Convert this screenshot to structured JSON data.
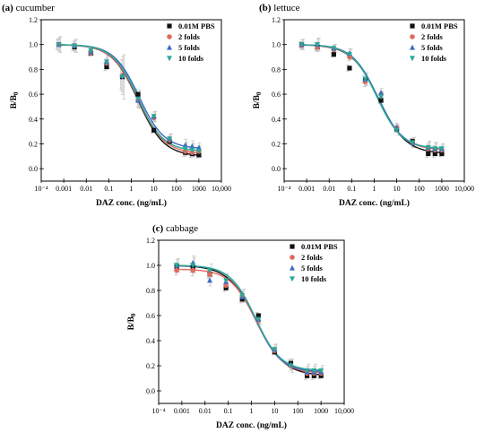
{
  "chart_data": [
    {
      "type": "scatter",
      "panel_label": "(a)",
      "title": "cucumber",
      "xlabel": "DAZ conc. (ng/mL)",
      "ylabel_main": "B/B",
      "ylabel_sub": "0",
      "x_scale": "log",
      "xlim": [
        0.0001,
        10000
      ],
      "ylim": [
        -0.1,
        1.2
      ],
      "x_ticks": [
        "10⁻⁴",
        "0.001",
        "0.01",
        "0.1",
        "1",
        "10",
        "100",
        "1000",
        "10,000"
      ],
      "y_ticks": [
        "0.0",
        "0.2",
        "0.4",
        "0.6",
        "0.8",
        "1.0",
        "1.2"
      ],
      "x_conc": [
        0.0006,
        0.003,
        0.016,
        0.08,
        0.4,
        2,
        10,
        50,
        250,
        500,
        1000
      ],
      "series": [
        {
          "name": "0.01M PBS",
          "color": "#111111",
          "marker": "square",
          "values": [
            1.0,
            0.98,
            0.93,
            0.82,
            0.74,
            0.6,
            0.31,
            0.22,
            0.13,
            0.12,
            0.11
          ],
          "fit": {
            "top": 1.0,
            "bottom": 0.1,
            "ic50": 2.0,
            "slope": 0.75
          }
        },
        {
          "name": "2 folds",
          "color": "#e06a5e",
          "marker": "circle",
          "values": [
            1.0,
            0.99,
            0.93,
            0.85,
            0.75,
            0.55,
            0.41,
            0.23,
            0.14,
            0.13,
            0.14
          ],
          "fit": {
            "top": 1.0,
            "bottom": 0.12,
            "ic50": 2.0,
            "slope": 0.75
          }
        },
        {
          "name": "5 folds",
          "color": "#3a6ac8",
          "marker": "triangle-up",
          "values": [
            1.0,
            0.99,
            0.94,
            0.86,
            0.75,
            0.55,
            0.42,
            0.24,
            0.19,
            0.18,
            0.17
          ],
          "fit": {
            "top": 1.0,
            "bottom": 0.16,
            "ic50": 2.2,
            "slope": 0.78
          }
        },
        {
          "name": "10 folds",
          "color": "#2aa896",
          "marker": "triangle-down",
          "values": [
            1.0,
            0.99,
            0.95,
            0.86,
            0.74,
            0.56,
            0.42,
            0.24,
            0.16,
            0.15,
            0.14
          ],
          "fit": {
            "top": 1.0,
            "bottom": 0.14,
            "ic50": 2.0,
            "slope": 0.78
          }
        }
      ],
      "error": [
        0.06,
        0.05,
        0.03,
        0.05,
        0.17,
        0.07,
        0.04,
        0.04,
        0.05,
        0.05,
        0.04
      ]
    },
    {
      "type": "scatter",
      "panel_label": "(b)",
      "title": "lettuce",
      "xlabel": "DAZ conc. (ng/mL)",
      "ylabel_main": "B/B",
      "ylabel_sub": "0",
      "x_scale": "log",
      "xlim": [
        0.0001,
        10000
      ],
      "ylim": [
        -0.1,
        1.2
      ],
      "x_ticks": [
        "10⁻⁴",
        "0.001",
        "0.01",
        "0.1",
        "1",
        "10",
        "100",
        "1000",
        "10,000"
      ],
      "y_ticks": [
        "0.0",
        "0.2",
        "0.4",
        "0.6",
        "0.8",
        "1.0",
        "1.2"
      ],
      "x_conc": [
        0.0006,
        0.003,
        0.016,
        0.08,
        0.4,
        2,
        10,
        50,
        250,
        500,
        1000
      ],
      "series": [
        {
          "name": "0.01M PBS",
          "color": "#111111",
          "marker": "square",
          "values": [
            1.0,
            0.98,
            0.92,
            0.81,
            0.72,
            0.55,
            0.32,
            0.22,
            0.12,
            0.12,
            0.12
          ],
          "fit": {
            "top": 1.0,
            "bottom": 0.12,
            "ic50": 1.6,
            "slope": 0.72
          }
        },
        {
          "name": "2 folds",
          "color": "#e06a5e",
          "marker": "circle",
          "values": [
            0.99,
            0.98,
            0.96,
            0.9,
            0.7,
            0.6,
            0.33,
            0.21,
            0.16,
            0.15,
            0.15
          ],
          "fit": {
            "top": 1.0,
            "bottom": 0.15,
            "ic50": 1.4,
            "slope": 0.75
          }
        },
        {
          "name": "5 folds",
          "color": "#3a6ac8",
          "marker": "triangle-up",
          "values": [
            1.0,
            1.0,
            0.97,
            0.93,
            0.72,
            0.61,
            0.33,
            0.21,
            0.17,
            0.16,
            0.16
          ],
          "fit": {
            "top": 1.0,
            "bottom": 0.16,
            "ic50": 1.4,
            "slope": 0.78
          }
        },
        {
          "name": "10 folds",
          "color": "#2aa896",
          "marker": "triangle-down",
          "values": [
            1.0,
            1.0,
            0.97,
            0.92,
            0.72,
            0.58,
            0.31,
            0.21,
            0.17,
            0.16,
            0.16
          ],
          "fit": {
            "top": 1.0,
            "bottom": 0.16,
            "ic50": 1.3,
            "slope": 0.78
          }
        }
      ],
      "error": [
        0.04,
        0.05,
        0.03,
        0.04,
        0.05,
        0.04,
        0.04,
        0.04,
        0.05,
        0.05,
        0.04
      ]
    },
    {
      "type": "scatter",
      "panel_label": "(c)",
      "title": "cabbage",
      "xlabel": "DAZ conc. (ng/mL)",
      "ylabel_main": "B/B",
      "ylabel_sub": "0",
      "x_scale": "log",
      "xlim": [
        0.0001,
        10000
      ],
      "ylim": [
        -0.1,
        1.2
      ],
      "x_ticks": [
        "10⁻⁴",
        "0.001",
        "0.01",
        "0.1",
        "1",
        "10",
        "100",
        "1000",
        "10,000"
      ],
      "y_ticks": [
        "0.0",
        "0.2",
        "0.4",
        "0.6",
        "0.8",
        "1.0",
        "1.2"
      ],
      "x_conc": [
        0.0006,
        0.003,
        0.016,
        0.08,
        0.4,
        2,
        10,
        50,
        250,
        500,
        1000
      ],
      "series": [
        {
          "name": "0.01M PBS",
          "color": "#111111",
          "marker": "square",
          "values": [
            0.99,
            0.98,
            0.93,
            0.82,
            0.73,
            0.6,
            0.31,
            0.22,
            0.12,
            0.12,
            0.12
          ],
          "fit": {
            "top": 1.0,
            "bottom": 0.12,
            "ic50": 1.6,
            "slope": 0.72
          }
        },
        {
          "name": "2 folds",
          "color": "#e06a5e",
          "marker": "circle",
          "values": [
            0.96,
            0.96,
            0.93,
            0.84,
            0.75,
            0.56,
            0.32,
            0.2,
            0.14,
            0.14,
            0.14
          ],
          "fit": {
            "top": 0.97,
            "bottom": 0.14,
            "ic50": 1.6,
            "slope": 0.78
          }
        },
        {
          "name": "5 folds",
          "color": "#3a6ac8",
          "marker": "triangle-up",
          "values": [
            1.0,
            1.02,
            0.88,
            0.87,
            0.75,
            0.57,
            0.33,
            0.21,
            0.15,
            0.15,
            0.15
          ],
          "fit": {
            "top": 1.0,
            "bottom": 0.15,
            "ic50": 1.5,
            "slope": 0.8
          }
        },
        {
          "name": "10 folds",
          "color": "#2aa896",
          "marker": "triangle-down",
          "values": [
            1.0,
            1.0,
            0.96,
            0.88,
            0.76,
            0.57,
            0.33,
            0.2,
            0.16,
            0.16,
            0.16
          ],
          "fit": {
            "top": 1.0,
            "bottom": 0.16,
            "ic50": 1.5,
            "slope": 0.8
          }
        }
      ],
      "error": [
        0.05,
        0.06,
        0.05,
        0.05,
        0.05,
        0.04,
        0.04,
        0.05,
        0.05,
        0.05,
        0.04
      ]
    }
  ]
}
